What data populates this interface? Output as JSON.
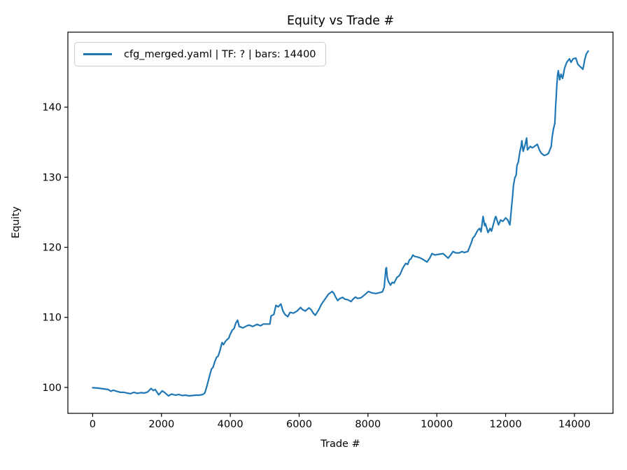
{
  "chart_data": {
    "type": "line",
    "title": "Equity vs Trade #",
    "xlabel": "Trade #",
    "ylabel": "Equity",
    "grid": false,
    "legend_position": "upper left",
    "axis_color": "#000000",
    "legend_border_color": "#cccccc",
    "xlim": [
      -720,
      15120
    ],
    "ylim": [
      96.3,
      150.7
    ],
    "xticks": [
      0,
      2000,
      4000,
      6000,
      8000,
      10000,
      12000,
      14000
    ],
    "yticks": [
      100,
      110,
      120,
      130,
      140
    ],
    "series": [
      {
        "name": "cfg_merged.yaml | TF: ? | bars: 14400",
        "color": "#1f77b4",
        "x": [
          0,
          150,
          300,
          450,
          530,
          600,
          700,
          800,
          900,
          1000,
          1100,
          1200,
          1300,
          1400,
          1500,
          1600,
          1700,
          1760,
          1820,
          1870,
          1920,
          2020,
          2100,
          2200,
          2300,
          2400,
          2500,
          2600,
          2700,
          2800,
          2900,
          3000,
          3100,
          3200,
          3260,
          3320,
          3400,
          3450,
          3500,
          3550,
          3600,
          3650,
          3700,
          3760,
          3800,
          3850,
          3900,
          3950,
          4000,
          4060,
          4110,
          4160,
          4210,
          4260,
          4370,
          4480,
          4550,
          4650,
          4780,
          4880,
          4960,
          5150,
          5185,
          5265,
          5325,
          5390,
          5470,
          5530,
          5590,
          5670,
          5735,
          5835,
          5940,
          6040,
          6100,
          6180,
          6285,
          6345,
          6410,
          6470,
          6560,
          6650,
          6750,
          6850,
          6960,
          7010,
          7060,
          7120,
          7185,
          7265,
          7330,
          7420,
          7510,
          7565,
          7635,
          7700,
          7800,
          7900,
          8015,
          8110,
          8225,
          8320,
          8420,
          8470,
          8520,
          8535,
          8560,
          8595,
          8655,
          8705,
          8760,
          8840,
          8900,
          8940,
          9000,
          9045,
          9100,
          9155,
          9205,
          9255,
          9305,
          9355,
          9450,
          9505,
          9570,
          9650,
          9715,
          9800,
          9860,
          9950,
          10050,
          10185,
          10250,
          10330,
          10400,
          10470,
          10550,
          10650,
          10735,
          10800,
          10900,
          11000,
          11045,
          11100,
          11185,
          11245,
          11285,
          11345,
          11390,
          11410,
          11490,
          11550,
          11590,
          11695,
          11715,
          11795,
          11855,
          11920,
          12000,
          12060,
          12125,
          12165,
          12205,
          12225,
          12265,
          12305,
          12330,
          12370,
          12410,
          12450,
          12470,
          12510,
          12570,
          12610,
          12635,
          12715,
          12775,
          12840,
          12920,
          12980,
          13040,
          13120,
          13185,
          13245,
          13325,
          13350,
          13390,
          13430,
          13450,
          13470,
          13490,
          13510,
          13530,
          13570,
          13610,
          13655,
          13715,
          13775,
          13855,
          13900,
          13960,
          14040,
          14100,
          14205,
          14245,
          14305,
          14345,
          14400
        ],
        "y": [
          99.95,
          99.9,
          99.8,
          99.7,
          99.45,
          99.6,
          99.45,
          99.3,
          99.3,
          99.2,
          99.1,
          99.3,
          99.15,
          99.25,
          99.2,
          99.35,
          99.85,
          99.55,
          99.7,
          99.3,
          98.95,
          99.5,
          99.25,
          98.8,
          99.05,
          98.9,
          99.0,
          98.85,
          98.9,
          98.8,
          98.85,
          98.9,
          98.9,
          99.0,
          99.2,
          100.2,
          101.7,
          102.6,
          102.9,
          103.7,
          104.3,
          104.5,
          105.3,
          106.4,
          106.1,
          106.5,
          106.8,
          107.0,
          107.6,
          108.2,
          108.4,
          109.2,
          109.6,
          108.7,
          108.5,
          108.8,
          108.9,
          108.7,
          109.0,
          108.8,
          109.05,
          109.05,
          110.2,
          110.4,
          111.7,
          111.5,
          111.9,
          110.9,
          110.4,
          110.1,
          110.7,
          110.6,
          110.9,
          111.4,
          111.1,
          110.9,
          111.35,
          111.1,
          110.6,
          110.3,
          111.0,
          111.9,
          112.6,
          113.3,
          113.7,
          113.4,
          112.9,
          112.4,
          112.7,
          112.85,
          112.6,
          112.5,
          112.25,
          112.6,
          112.9,
          112.7,
          112.8,
          113.2,
          113.7,
          113.5,
          113.4,
          113.5,
          113.65,
          114.3,
          116.9,
          117.1,
          115.7,
          115.1,
          114.6,
          115.0,
          114.9,
          115.7,
          115.9,
          116.2,
          116.9,
          117.3,
          117.7,
          117.55,
          118.2,
          118.4,
          118.9,
          118.7,
          118.6,
          118.5,
          118.35,
          118.1,
          117.9,
          118.5,
          119.1,
          118.9,
          119.0,
          119.1,
          118.8,
          118.45,
          118.9,
          119.4,
          119.2,
          119.2,
          119.4,
          119.25,
          119.4,
          120.6,
          121.3,
          121.6,
          122.4,
          122.7,
          122.2,
          124.4,
          123.1,
          123.4,
          122.1,
          122.7,
          122.3,
          124.2,
          124.4,
          123.2,
          123.9,
          123.7,
          124.2,
          123.9,
          123.2,
          125.4,
          127.4,
          128.7,
          129.9,
          130.3,
          131.7,
          132.2,
          133.5,
          134.4,
          135.2,
          133.7,
          134.7,
          135.6,
          133.9,
          134.4,
          134.2,
          134.4,
          134.7,
          133.9,
          133.4,
          133.1,
          133.2,
          133.4,
          134.4,
          135.7,
          136.9,
          137.7,
          139.9,
          141.6,
          143.2,
          144.6,
          145.2,
          143.9,
          144.7,
          144.1,
          145.6,
          146.4,
          146.9,
          146.4,
          146.9,
          147.0,
          146.1,
          145.6,
          145.4,
          146.9,
          147.6,
          148.0
        ]
      }
    ]
  }
}
